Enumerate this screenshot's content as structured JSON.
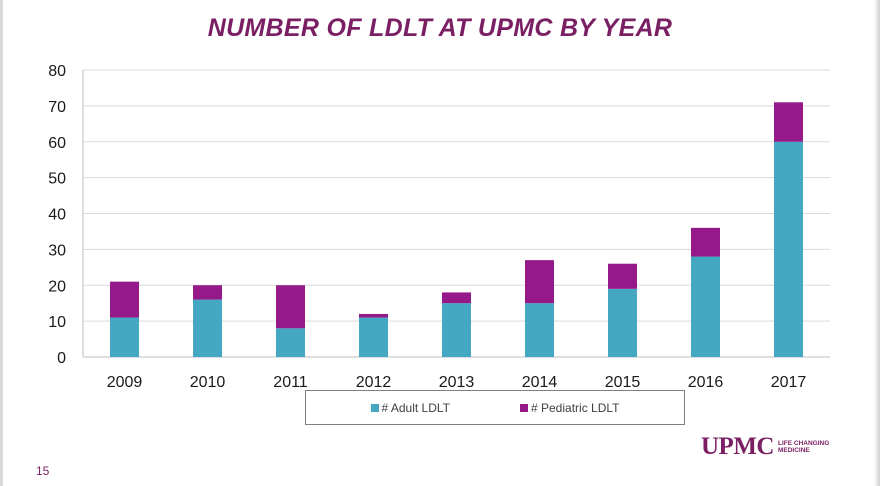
{
  "slide": {
    "page_number": "15",
    "logo_word": "UPMC",
    "logo_tagline": "LIFE CHANGING MEDICINE"
  },
  "colors": {
    "adult": "#45a8c2",
    "pediatric": "#96198a",
    "title": "#7a1f63",
    "grid": "#d9d9d9"
  },
  "chart_data": {
    "type": "bar",
    "stacked": true,
    "title": "NUMBER OF LDLT AT UPMC BY YEAR",
    "categories": [
      "2009",
      "2010",
      "2011",
      "2012",
      "2013",
      "2014",
      "2015",
      "2016",
      "2017"
    ],
    "series": [
      {
        "name": "# Adult LDLT",
        "values": [
          11,
          16,
          8,
          11,
          15,
          15,
          19,
          28,
          60
        ]
      },
      {
        "name": "# Pediatric LDLT",
        "values": [
          10,
          4,
          12,
          1,
          3,
          12,
          7,
          8,
          11
        ]
      }
    ],
    "ylim": [
      0,
      80
    ],
    "yticks": [
      0,
      10,
      20,
      30,
      40,
      50,
      60,
      70,
      80
    ],
    "grid": true,
    "legend_position": "bottom"
  }
}
